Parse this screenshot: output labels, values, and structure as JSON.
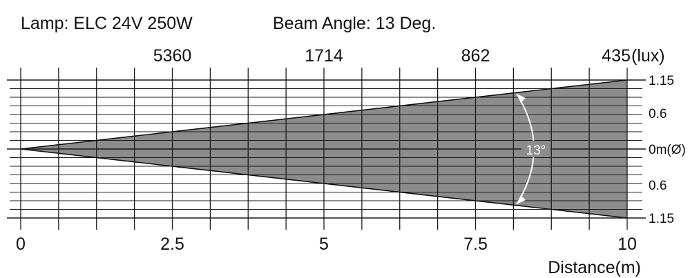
{
  "header": {
    "lamp": "Lamp: ELC 24V 250W",
    "beam_angle": "Beam Angle: 13 Deg."
  },
  "chart_data": {
    "type": "beam-diagram",
    "title_lamp": "Lamp: ELC 24V 250W",
    "title_beam": "Beam Angle: 13 Deg.",
    "beam_angle_deg": 13,
    "angle_label": "13°",
    "distance_axis": {
      "label": "Distance(m)",
      "min": 0,
      "max": 10,
      "ticks": [
        0,
        2.5,
        5,
        7.5,
        10
      ],
      "tick_labels": [
        "0",
        "2.5",
        "5",
        "7.5",
        "10"
      ]
    },
    "lux": {
      "unit": "(lux)",
      "points": [
        {
          "distance": 2.5,
          "value": 5360,
          "label": "5360"
        },
        {
          "distance": 5,
          "value": 1714,
          "label": "1714"
        },
        {
          "distance": 7.5,
          "value": 862,
          "label": "862"
        },
        {
          "distance": 10,
          "value": 435,
          "label": "435"
        }
      ]
    },
    "diameter_axis": {
      "unit": "m(Ø)",
      "ticks": [
        {
          "value": 1.15,
          "label": "1.15"
        },
        {
          "value": 0.6,
          "label": "0.6"
        },
        {
          "value": 0,
          "label": "0m(Ø)"
        },
        {
          "value": -0.6,
          "label": "0.6"
        },
        {
          "value": -1.15,
          "label": "1.15"
        }
      ]
    },
    "beam_half_width_at_max": 1.15,
    "grid": true,
    "colors": {
      "beam": "#8c8c8c",
      "grid": "#1a1a1a",
      "background": "#ffffff",
      "angle_text": "#ffffff"
    }
  }
}
